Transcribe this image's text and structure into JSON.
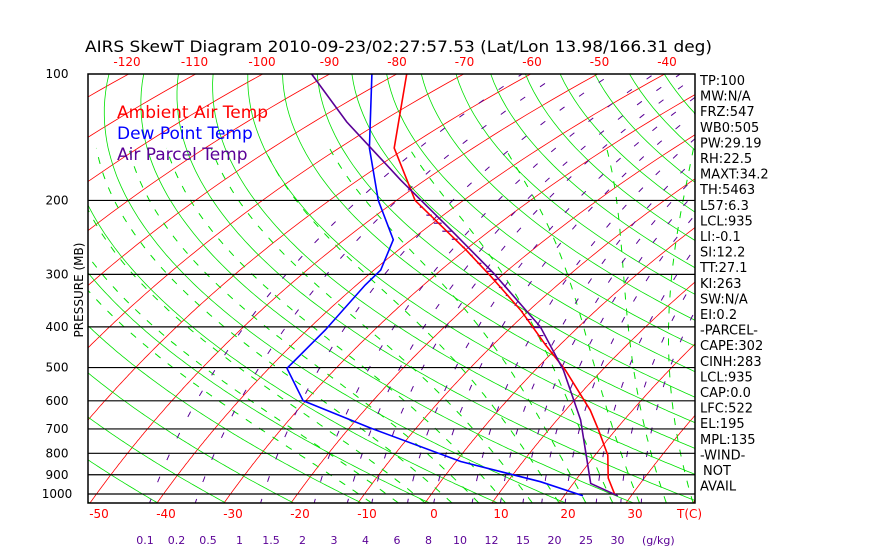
{
  "chart_data": {
    "type": "line",
    "title": "AIRS SkewT Diagram 2010-09-23/02:27:57.53 (Lat/Lon 13.98/166.31 deg)",
    "ylabel": "PRESSURE (MB)",
    "xlabel": "T(C)",
    "mixing_ratio_unit": "(g/kg)",
    "y_scale": "log",
    "ylim": [
      1050,
      100
    ],
    "pressure_ticks": [
      "100",
      "200",
      "300",
      "400",
      "500",
      "600",
      "700",
      "800",
      "900",
      "1000"
    ],
    "top_temp_ticks": [
      "-120",
      "-110",
      "-100",
      "-90",
      "-80",
      "-70",
      "-60",
      "-50",
      "-40"
    ],
    "bottom_temp_ticks": [
      "-50",
      "-40",
      "-30",
      "-20",
      "-10",
      "0",
      "10",
      "20",
      "30"
    ],
    "mixing_ratio_ticks": [
      "0.1",
      "0.2",
      "0.5",
      "1",
      "1.5",
      "2",
      "3",
      "4",
      "6",
      "8",
      "10",
      "12",
      "15",
      "20",
      "25",
      "30"
    ],
    "legend": [
      {
        "name": "Ambient Air Temp",
        "color": "#ff0000"
      },
      {
        "name": "Dew Point Temp",
        "color": "#0000ff"
      },
      {
        "name": "Air Parcel Temp",
        "color": "#5a0096"
      }
    ],
    "series": [
      {
        "name": "Ambient Air Temp",
        "color": "#ff0000",
        "p": [
          100,
          150,
          200,
          262,
          303,
          365,
          442,
          507,
          632,
          705,
          808,
          916,
          1006
        ],
        "T": [
          -78.5,
          -61.8,
          -47.2,
          -30,
          -21.5,
          -11.3,
          -2.1,
          4.5,
          13.7,
          17.5,
          21.9,
          24.6,
          27.5
        ]
      },
      {
        "name": "Dew Point Temp",
        "color": "#0000ff",
        "p": [
          100,
          150,
          200,
          248,
          293,
          318,
          407,
          502,
          600,
          696,
          837,
          935,
          1010
        ],
        "T": [
          -83.7,
          -65.5,
          -52.7,
          -42.7,
          -39,
          -38.7,
          -37.3,
          -37.3,
          -30.4,
          -16.9,
          0.7,
          14.9,
          22.8
        ]
      },
      {
        "name": "Air Parcel Temp",
        "color": "#5a0096",
        "p": [
          100,
          130,
          179,
          235,
          298,
          400,
          507,
          666,
          944,
          1010
        ],
        "T": [
          -92.7,
          -75.1,
          -53.6,
          -36,
          -21.6,
          -5.7,
          4.2,
          13.5,
          22.6,
          28
        ]
      }
    ],
    "indices": [
      "TP:100",
      "MW:N/A",
      "FRZ:547",
      "WB0:505",
      "PW:29.19",
      "RH:22.5",
      "MAXT:34.2",
      "TH:5463",
      "L57:6.3",
      "LCL:935",
      "LI:-0.1",
      "SI:12.2",
      "TT:27.1",
      "KI:263",
      "SW:N/A",
      "EI:0.2",
      "-PARCEL-",
      "CAPE:302",
      "CINH:283",
      "LCL:935",
      "CAP:0.0",
      "LFC:522",
      "EL:195",
      "MPL:135",
      "-WIND-",
      "NOT",
      "AVAIL"
    ],
    "grid_colors": {
      "isotherm": "#ff0000",
      "dry_adiabat": "#00e000",
      "moist_adiabat": "#00e000",
      "mixing_ratio": "#5a0096",
      "isobar": "#000000"
    }
  }
}
